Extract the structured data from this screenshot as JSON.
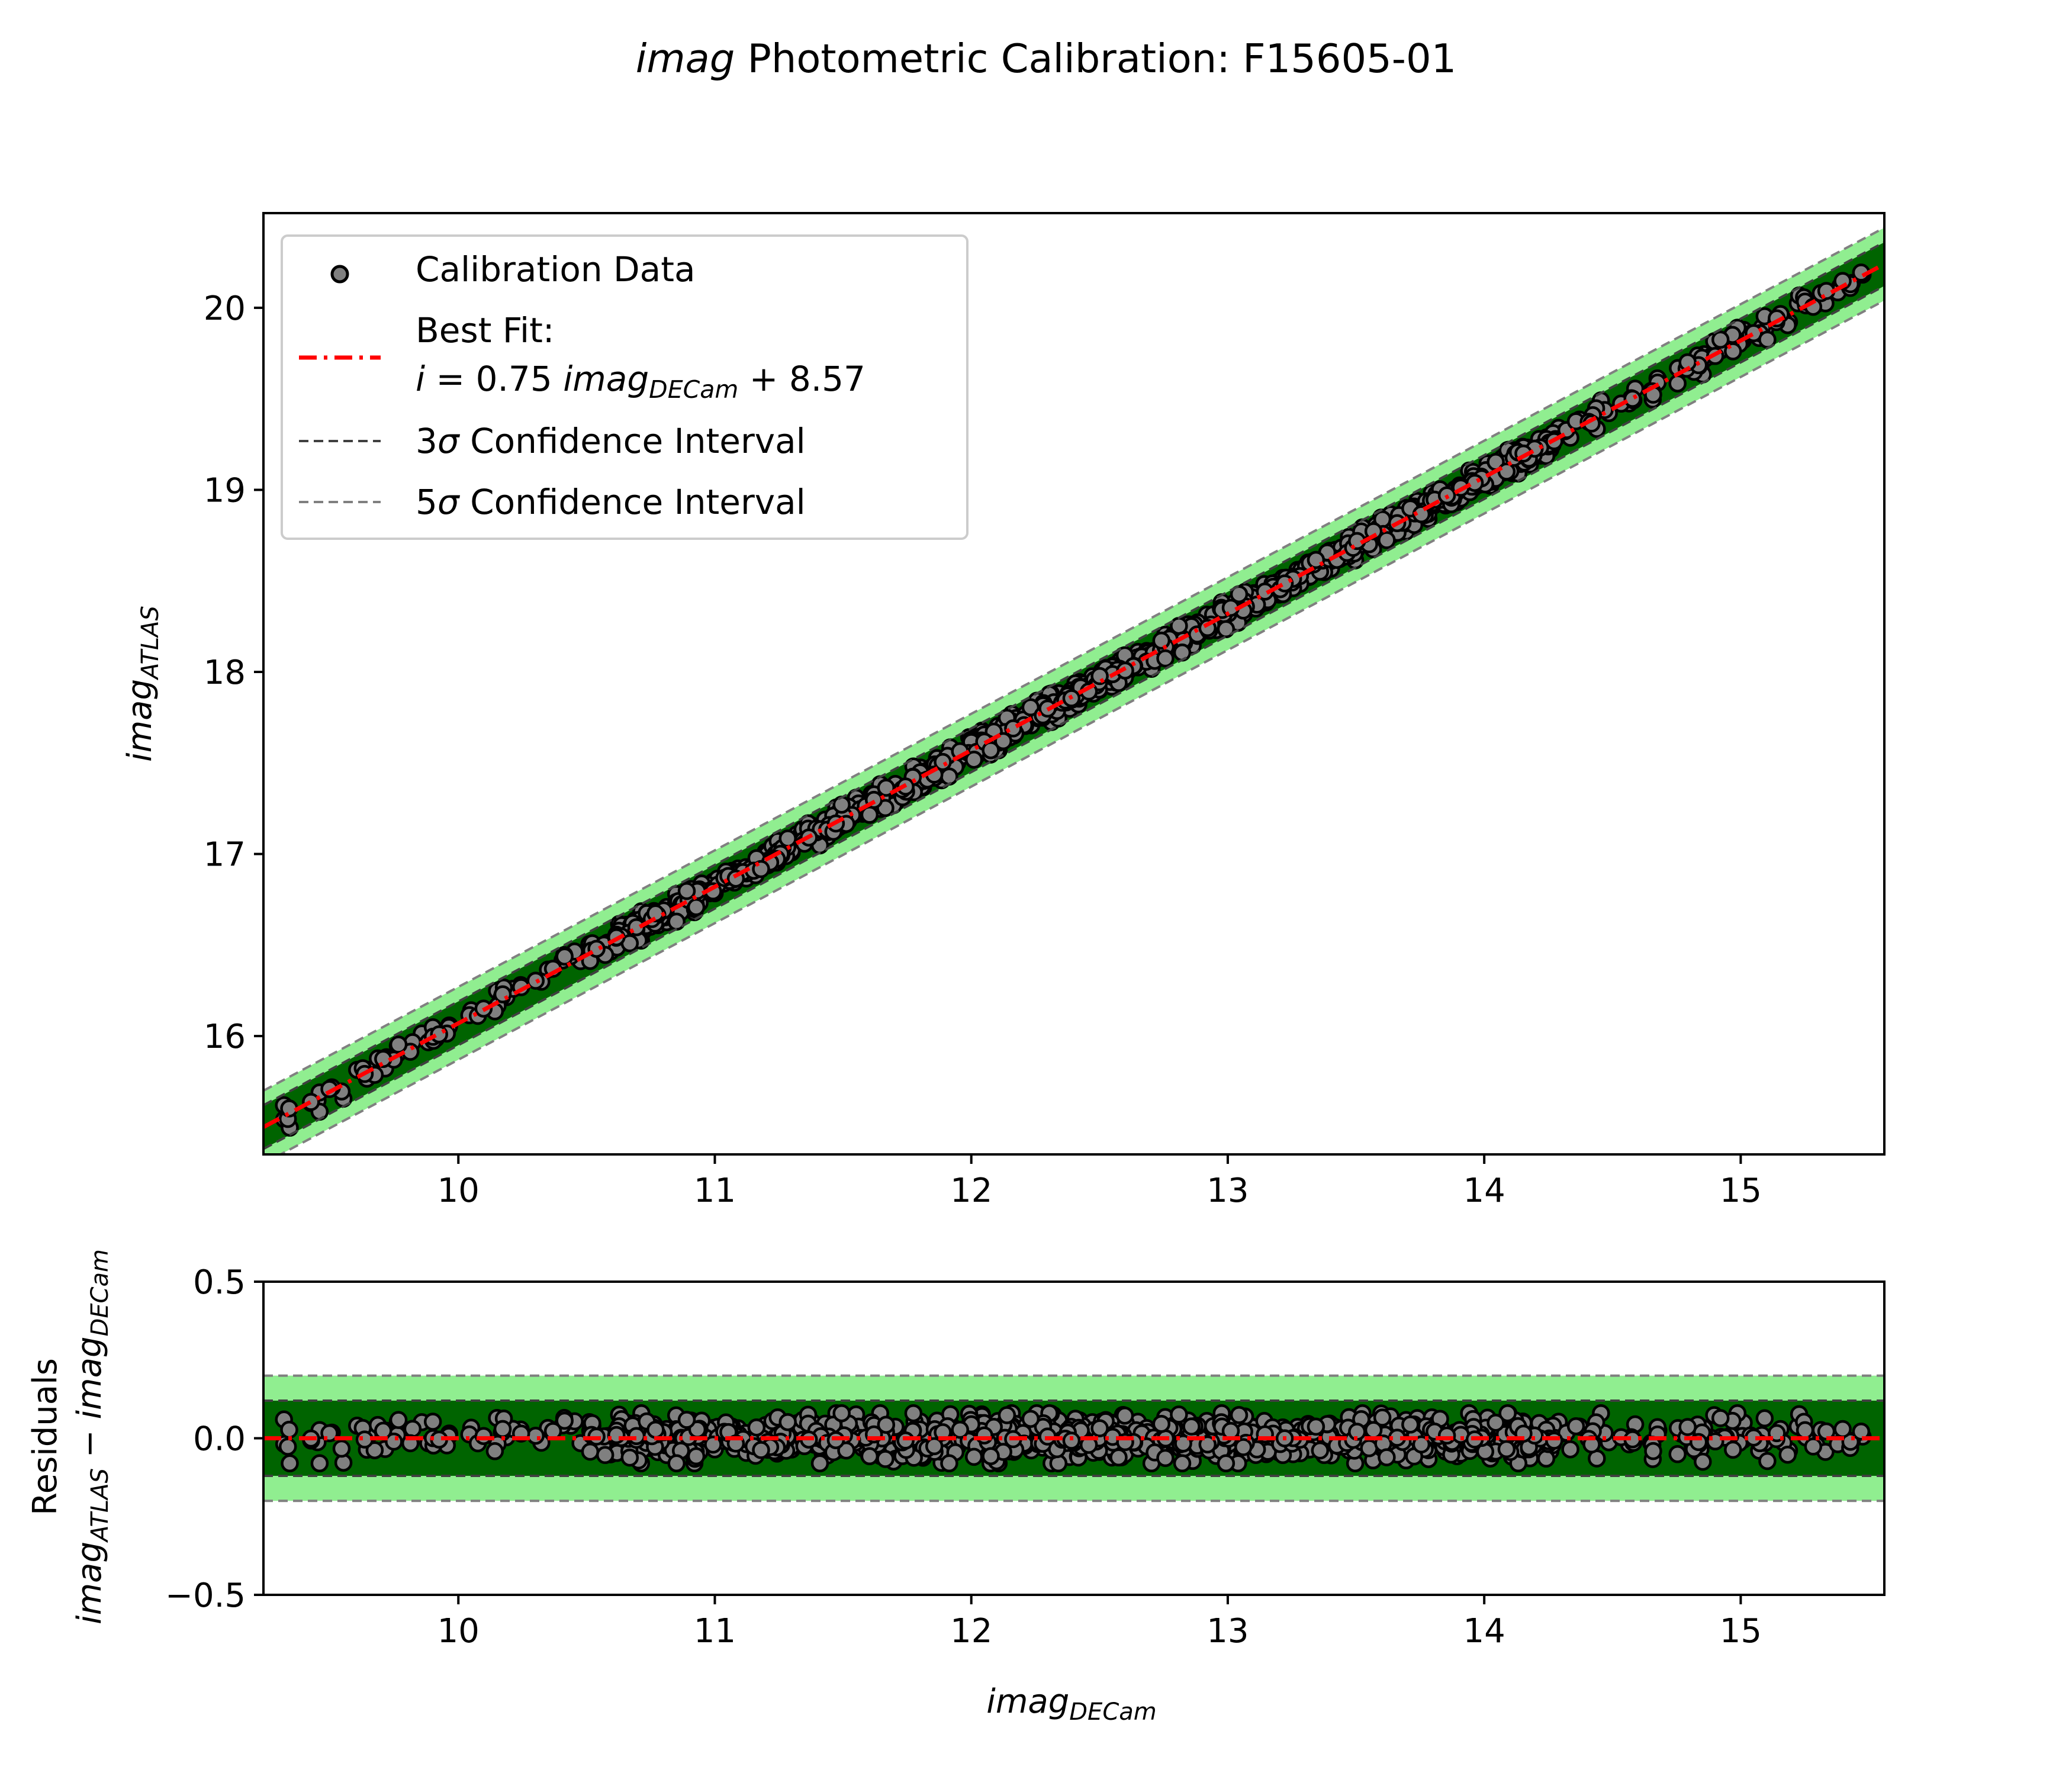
{
  "title": {
    "italic": "imag",
    "rest": " Photometric Calibration: F15605-01"
  },
  "colors": {
    "band3": "#006400",
    "band5": "#90EE90",
    "fit_line": "#FF0000",
    "conf3_line": "#404040",
    "conf5_line": "#808080",
    "marker_fill": "#808080",
    "marker_edge": "#000000"
  },
  "chart_data": [
    {
      "type": "scatter",
      "panel": "main",
      "xlabel": {
        "base": "imag",
        "sub": "DECam"
      },
      "ylabel": {
        "base": "imag",
        "sub": "ATLAS"
      },
      "xlim": [
        9.24,
        15.56
      ],
      "ylim": [
        15.35,
        20.52
      ],
      "x_ticks": [
        10,
        11,
        12,
        13,
        14,
        15
      ],
      "y_ticks": [
        16,
        17,
        18,
        19,
        20
      ],
      "grid": false,
      "legend_position": "upper-left",
      "fit": {
        "slope": 0.75,
        "intercept": 8.57
      },
      "band_3sigma_halfwidth": 0.12,
      "band_5sigma_halfwidth": 0.2,
      "series": [
        {
          "name": "Calibration Data",
          "n_points_approx": 1200,
          "x_range": [
            9.32,
            15.48
          ],
          "scatter_sigma": 0.035
        }
      ],
      "legend": [
        {
          "label": "Calibration Data",
          "kind": "marker"
        },
        {
          "label": "Best Fit:",
          "kind": "fit-line",
          "equation": {
            "var": "i",
            "eq": " = 0.75 ",
            "term": "imag",
            "sub": "DECam",
            "tail": " + 8.57"
          }
        },
        {
          "sigma_num": "3",
          "sigma_sym": "σ",
          "label": " Confidence Interval",
          "kind": "conf3"
        },
        {
          "sigma_num": "5",
          "sigma_sym": "σ",
          "label": " Confidence Interval",
          "kind": "conf5"
        }
      ]
    },
    {
      "type": "scatter",
      "panel": "residuals",
      "xlabel": {
        "base": "imag",
        "sub": "DECam"
      },
      "ylabel": {
        "line1": "Residuals",
        "a": "imag",
        "a_sub": "ATLAS",
        "op": " − ",
        "b": "imag",
        "b_sub": "DECam"
      },
      "xlim": [
        9.24,
        15.56
      ],
      "ylim": [
        -0.5,
        0.5
      ],
      "x_ticks": [
        10,
        11,
        12,
        13,
        14,
        15
      ],
      "y_ticks": [
        -0.5,
        0.0,
        0.5
      ],
      "y_tick_labels": [
        "−0.5",
        "0.0",
        "0.5"
      ],
      "grid": false,
      "fit_value": 0.0,
      "band_3sigma_halfwidth": 0.12,
      "band_5sigma_halfwidth": 0.2,
      "residual_range": [
        -0.08,
        0.08
      ]
    }
  ]
}
